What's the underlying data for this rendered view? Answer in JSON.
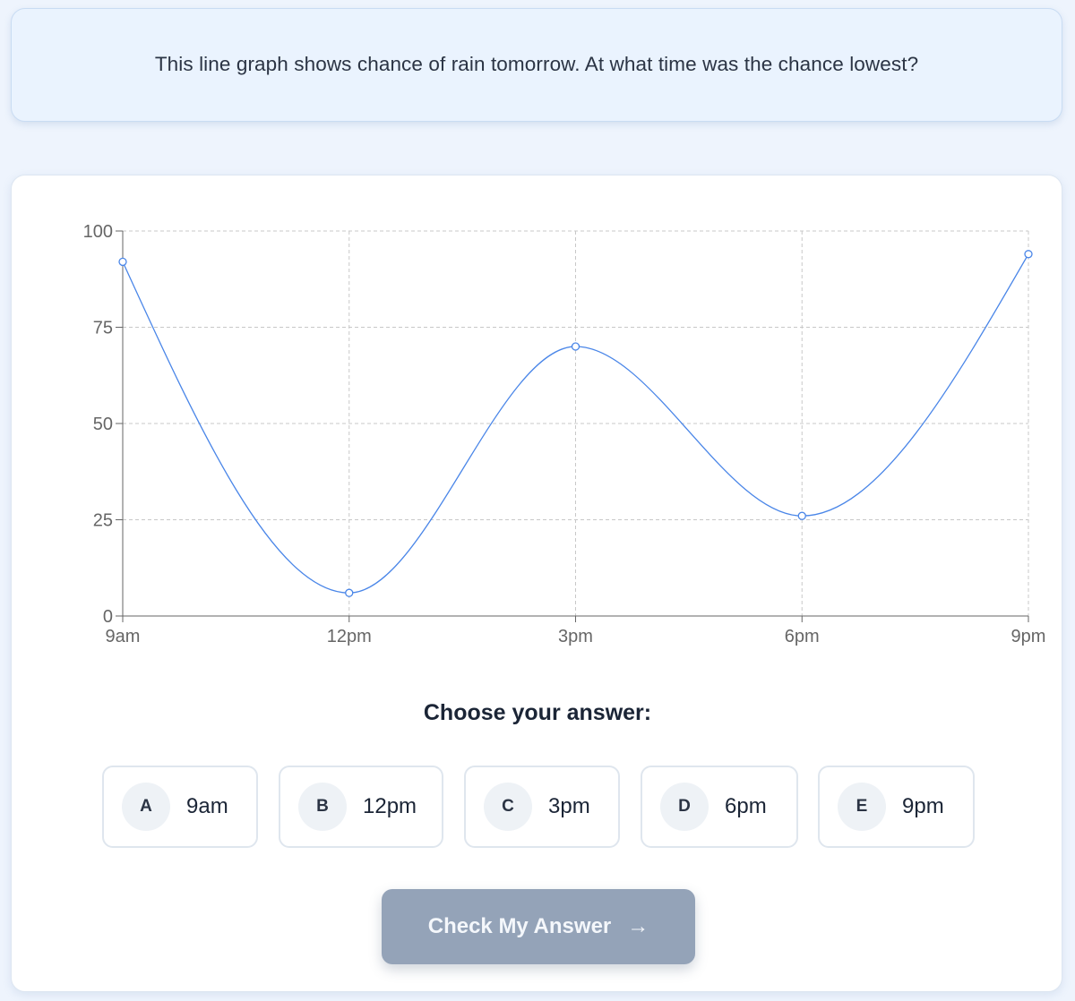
{
  "question": {
    "text": "This line graph shows chance of rain tomorrow. At what time was the chance lowest?"
  },
  "chart_data": {
    "type": "line",
    "categories": [
      "9am",
      "12pm",
      "3pm",
      "6pm",
      "9pm"
    ],
    "values": [
      92,
      6,
      70,
      26,
      94
    ],
    "y_ticks": [
      0,
      25,
      50,
      75,
      100
    ],
    "ylim": [
      0,
      100
    ],
    "grid": true,
    "line_color": "#4a86e8"
  },
  "answer": {
    "prompt": "Choose your answer:",
    "options": [
      {
        "letter": "A",
        "label": "9am"
      },
      {
        "letter": "B",
        "label": "12pm"
      },
      {
        "letter": "C",
        "label": "3pm"
      },
      {
        "letter": "D",
        "label": "6pm"
      },
      {
        "letter": "E",
        "label": "9pm"
      }
    ],
    "submit_label": "Check My Answer",
    "submit_icon": "arrow-right-icon"
  }
}
